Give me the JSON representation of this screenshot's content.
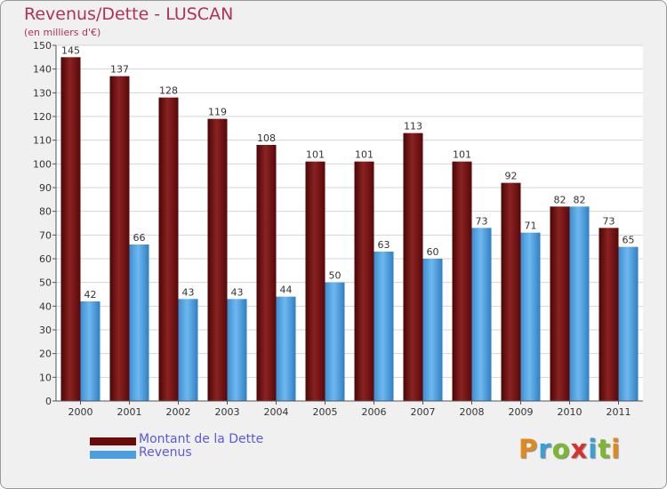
{
  "header": {
    "title": "Revenus/Dette - LUSCAN",
    "subtitle": "(en milliers d'€)"
  },
  "colors": {
    "dette": "#6b0a0a",
    "revenus": "#4a9fe0",
    "title": "#b03060",
    "legend_text": "#5a5adf",
    "background": "#f0f0f0",
    "plot_background": "#ffffff"
  },
  "legend": {
    "items": [
      {
        "label": "Montant de la Dette",
        "color": "#6b0a0a"
      },
      {
        "label": "Revenus",
        "color": "#4a9fe0"
      }
    ]
  },
  "logo": {
    "letters": [
      {
        "ch": "P",
        "color": "#e08a1e"
      },
      {
        "ch": "r",
        "color": "#3a9fd8"
      },
      {
        "ch": "o",
        "color": "#7cb82f"
      },
      {
        "ch": "x",
        "color": "#d8322a"
      },
      {
        "ch": "i",
        "color": "#3a9fd8"
      },
      {
        "ch": "t",
        "color": "#7cb82f"
      },
      {
        "ch": "i",
        "color": "#e08a1e"
      }
    ]
  },
  "chart_data": {
    "type": "bar",
    "title": "Revenus/Dette - LUSCAN",
    "subtitle": "(en milliers d'€)",
    "categories": [
      "2000",
      "2001",
      "2002",
      "2003",
      "2004",
      "2005",
      "2006",
      "2007",
      "2008",
      "2009",
      "2010",
      "2011"
    ],
    "series": [
      {
        "name": "Montant de la Dette",
        "color": "#6b0a0a",
        "values": [
          145,
          137,
          128,
          119,
          108,
          101,
          101,
          113,
          101,
          92,
          82,
          73
        ]
      },
      {
        "name": "Revenus",
        "color": "#4a9fe0",
        "values": [
          42,
          66,
          43,
          43,
          44,
          50,
          63,
          60,
          73,
          71,
          82,
          65
        ]
      }
    ],
    "ylim": [
      0,
      150
    ],
    "yticks": [
      0,
      10,
      20,
      30,
      40,
      50,
      60,
      70,
      80,
      90,
      100,
      110,
      120,
      130,
      140,
      150
    ],
    "grid": true,
    "legend_position": "bottom-left"
  }
}
